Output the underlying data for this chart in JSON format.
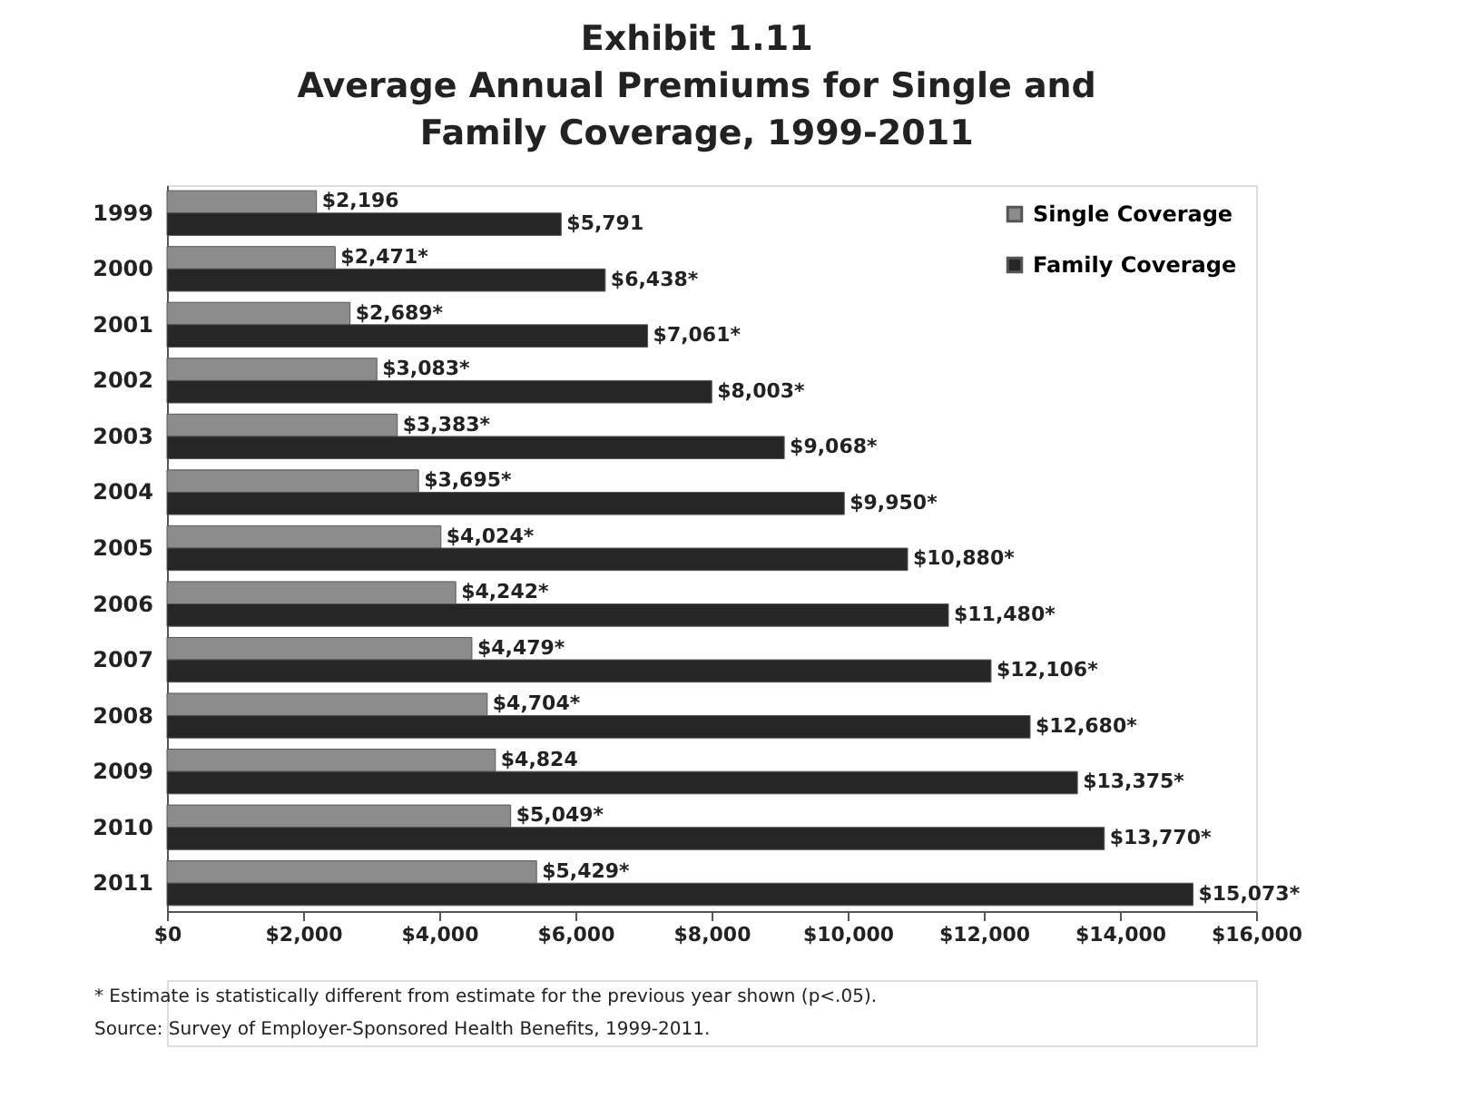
{
  "chart_data": {
    "type": "bar",
    "orientation": "horizontal",
    "title": "Exhibit 1.11",
    "subtitle": "Average Annual Premiums for Single and Family Coverage, 1999-2011",
    "categories": [
      "1999",
      "2000",
      "2001",
      "2002",
      "2003",
      "2004",
      "2005",
      "2006",
      "2007",
      "2008",
      "2009",
      "2010",
      "2011"
    ],
    "series": [
      {
        "name": "Single Coverage",
        "color": "#8c8c8c",
        "values": [
          2196,
          2471,
          2689,
          3083,
          3383,
          3695,
          4024,
          4242,
          4479,
          4704,
          4824,
          5049,
          5429
        ],
        "value_labels": [
          "$2,196",
          "$2,471*",
          "$2,689*",
          "$3,083*",
          "$3,383*",
          "$3,695*",
          "$4,024*",
          "$4,242*",
          "$4,479*",
          "$4,704*",
          "$4,824",
          "$5,049*",
          "$5,429*"
        ]
      },
      {
        "name": "Family Coverage",
        "color": "#262626",
        "values": [
          5791,
          6438,
          7061,
          8003,
          9068,
          9950,
          10880,
          11480,
          12106,
          12680,
          13375,
          13770,
          15073
        ],
        "value_labels": [
          "$5,791",
          "$6,438*",
          "$7,061*",
          "$8,003*",
          "$9,068*",
          "$9,950*",
          "$10,880*",
          "$11,480*",
          "$12,106*",
          "$12,680*",
          "$13,375*",
          "$13,770*",
          "$15,073*"
        ]
      }
    ],
    "xlim": [
      0,
      16000
    ],
    "xticks": [
      {
        "value": 0,
        "label": "$0"
      },
      {
        "value": 2000,
        "label": "$2,000"
      },
      {
        "value": 4000,
        "label": "$4,000"
      },
      {
        "value": 6000,
        "label": "$6,000"
      },
      {
        "value": 8000,
        "label": "$8,000"
      },
      {
        "value": 10000,
        "label": "$10,000"
      },
      {
        "value": 12000,
        "label": "$12,000"
      },
      {
        "value": 14000,
        "label": "$14,000"
      },
      {
        "value": 16000,
        "label": "$16,000"
      }
    ],
    "grid": false,
    "legend": "top right",
    "annotations": [
      "* Estimate is statistically different from estimate for the previous year shown (p<.05).",
      "Source: Survey of Employer-Sponsored Health Benefits, 1999-2011."
    ]
  }
}
